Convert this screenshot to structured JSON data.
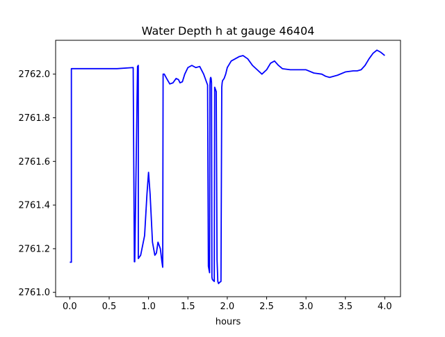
{
  "chart_data": {
    "type": "line",
    "title": "Water Depth h at gauge 46404",
    "xlabel": "hours",
    "ylabel": "",
    "xlim": [
      -0.18,
      4.2
    ],
    "ylim": [
      2760.98,
      2762.155
    ],
    "xticks": [
      0.0,
      0.5,
      1.0,
      1.5,
      2.0,
      2.5,
      3.0,
      3.5,
      4.0
    ],
    "xtick_labels": [
      "0.0",
      "0.5",
      "1.0",
      "1.5",
      "2.0",
      "2.5",
      "3.0",
      "3.5",
      "4.0"
    ],
    "yticks": [
      2761.0,
      2761.2,
      2761.4,
      2761.6,
      2761.8,
      2762.0
    ],
    "ytick_labels": [
      "2761.0",
      "2761.2",
      "2761.4",
      "2761.6",
      "2761.8",
      "2762.0"
    ],
    "grid": false,
    "series": [
      {
        "color": "#0000ff",
        "x": [
          0.0,
          0.02,
          0.02,
          0.3,
          0.6,
          0.8,
          0.805,
          0.82,
          0.825,
          0.86,
          0.87,
          0.87,
          0.9,
          0.95,
          0.98,
          1.0,
          1.02,
          1.05,
          1.08,
          1.1,
          1.12,
          1.15,
          1.17,
          1.18,
          1.185,
          1.2,
          1.23,
          1.27,
          1.31,
          1.35,
          1.38,
          1.4,
          1.43,
          1.46,
          1.5,
          1.55,
          1.6,
          1.65,
          1.7,
          1.75,
          1.76,
          1.77,
          1.775,
          1.78,
          1.785,
          1.79,
          1.795,
          1.8,
          1.805,
          1.81,
          1.82,
          1.835,
          1.84,
          1.85,
          1.86,
          1.87,
          1.88,
          1.885,
          1.89,
          1.9,
          1.92,
          1.93,
          1.935,
          1.94,
          1.96,
          1.98,
          2.0,
          2.05,
          2.1,
          2.15,
          2.2,
          2.26,
          2.32,
          2.38,
          2.44,
          2.5,
          2.55,
          2.6,
          2.65,
          2.7,
          2.8,
          2.9,
          3.0,
          3.1,
          3.2,
          3.25,
          3.3,
          3.4,
          3.5,
          3.6,
          3.65,
          3.7,
          3.75,
          3.8,
          3.85,
          3.9,
          3.95,
          4.0
        ],
        "values": [
          2761.138,
          2761.138,
          2762.025,
          2762.025,
          2762.025,
          2762.03,
          2762.03,
          2761.14,
          2761.14,
          2762.035,
          2762.04,
          2761.155,
          2761.17,
          2761.26,
          2761.45,
          2761.55,
          2761.45,
          2761.23,
          2761.17,
          2761.18,
          2761.23,
          2761.2,
          2761.14,
          2761.115,
          2762.0,
          2762.0,
          2761.98,
          2761.955,
          2761.96,
          2761.98,
          2761.975,
          2761.96,
          2761.965,
          2762.0,
          2762.03,
          2762.04,
          2762.03,
          2762.035,
          2762.0,
          2761.95,
          2761.12,
          2761.1,
          2761.09,
          2761.95,
          2761.98,
          2761.985,
          2761.98,
          2761.96,
          2761.07,
          2761.06,
          2761.055,
          2761.05,
          2761.94,
          2761.93,
          2761.92,
          2761.15,
          2761.05,
          2761.045,
          2761.04,
          2761.045,
          2761.05,
          2761.94,
          2761.96,
          2761.97,
          2761.98,
          2762.0,
          2762.03,
          2762.06,
          2762.07,
          2762.08,
          2762.085,
          2762.07,
          2762.04,
          2762.02,
          2762.0,
          2762.02,
          2762.05,
          2762.06,
          2762.04,
          2762.025,
          2762.02,
          2762.02,
          2762.02,
          2762.005,
          2762.0,
          2761.99,
          2761.985,
          2761.995,
          2762.01,
          2762.015,
          2762.015,
          2762.02,
          2762.04,
          2762.07,
          2762.095,
          2762.11,
          2762.1,
          2762.085
        ]
      }
    ]
  }
}
